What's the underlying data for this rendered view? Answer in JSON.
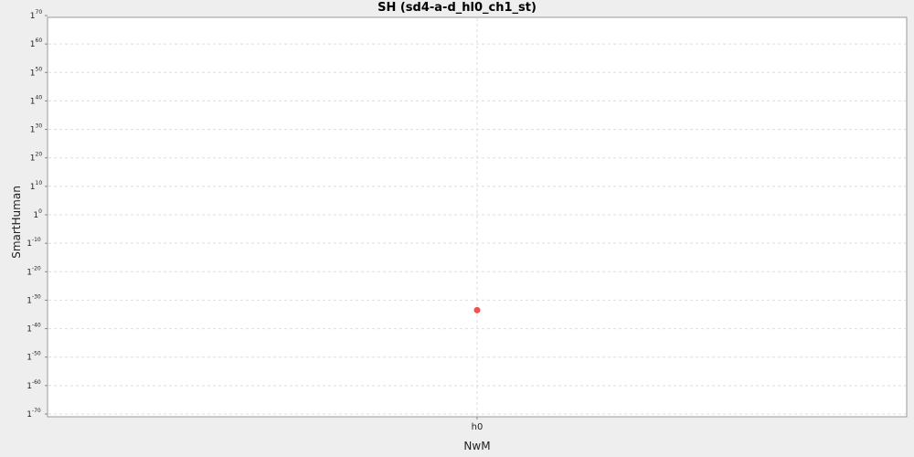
{
  "chart_data": {
    "type": "scatter",
    "title": "SH (sd4-a-d_hl0_ch1_st)",
    "xlabel": "NwM",
    "ylabel": "SmartHuman",
    "categories": [
      "h0"
    ],
    "y_scale": "log",
    "y_tick_base": "1",
    "y_tick_exponents": [
      70,
      60,
      50,
      40,
      30,
      20,
      10,
      0,
      -10,
      -20,
      -30,
      -40,
      -50,
      -60,
      -70
    ],
    "ylim_exponent": [
      -70,
      70
    ],
    "grid": true,
    "series": [
      {
        "points": [
          {
            "x": "h0",
            "y_exponent": -33.5
          }
        ],
        "color": "#f05050"
      }
    ]
  },
  "colors": {
    "background": "#eeeeee",
    "plot_background": "#ffffff",
    "grid": "#dddddd",
    "point": "#f05050"
  }
}
